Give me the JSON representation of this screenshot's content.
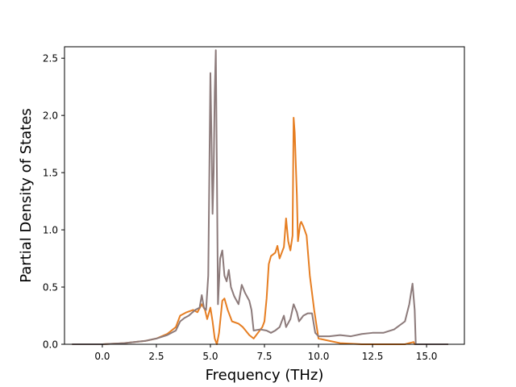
{
  "chart_data": {
    "type": "line",
    "title": "",
    "xlabel": "Frequency (THz)",
    "ylabel": "Partial Density of States",
    "xlim": [
      -1.75,
      16.75
    ],
    "ylim": [
      0,
      2.6
    ],
    "x_ticks": [
      0.0,
      2.5,
      5.0,
      7.5,
      10.0,
      12.5,
      15.0
    ],
    "x_tick_labels": [
      "0.0",
      "2.5",
      "5.0",
      "7.5",
      "10.0",
      "12.5",
      "15.0"
    ],
    "y_ticks": [
      0.0,
      0.5,
      1.0,
      1.5,
      2.0,
      2.5
    ],
    "y_tick_labels": [
      "0.0",
      "0.5",
      "1.0",
      "1.5",
      "2.0",
      "2.5"
    ],
    "grid": false,
    "legend": "none",
    "series": [
      {
        "color": "#e67e22",
        "points": [
          [
            -1.4,
            0.0
          ],
          [
            0.0,
            0.0
          ],
          [
            1.0,
            0.01
          ],
          [
            2.0,
            0.03
          ],
          [
            2.5,
            0.05
          ],
          [
            3.0,
            0.09
          ],
          [
            3.4,
            0.15
          ],
          [
            3.6,
            0.25
          ],
          [
            3.9,
            0.28
          ],
          [
            4.2,
            0.3
          ],
          [
            4.4,
            0.28
          ],
          [
            4.6,
            0.35
          ],
          [
            4.75,
            0.3
          ],
          [
            4.85,
            0.22
          ],
          [
            5.0,
            0.32
          ],
          [
            5.1,
            0.2
          ],
          [
            5.2,
            0.05
          ],
          [
            5.3,
            0.0
          ],
          [
            5.4,
            0.1
          ],
          [
            5.55,
            0.38
          ],
          [
            5.65,
            0.4
          ],
          [
            5.8,
            0.3
          ],
          [
            6.0,
            0.2
          ],
          [
            6.3,
            0.18
          ],
          [
            6.5,
            0.15
          ],
          [
            6.8,
            0.08
          ],
          [
            7.0,
            0.05
          ],
          [
            7.2,
            0.1
          ],
          [
            7.4,
            0.15
          ],
          [
            7.5,
            0.2
          ],
          [
            7.6,
            0.4
          ],
          [
            7.7,
            0.7
          ],
          [
            7.8,
            0.77
          ],
          [
            8.0,
            0.8
          ],
          [
            8.1,
            0.86
          ],
          [
            8.2,
            0.75
          ],
          [
            8.4,
            0.85
          ],
          [
            8.5,
            1.1
          ],
          [
            8.6,
            0.9
          ],
          [
            8.7,
            0.82
          ],
          [
            8.8,
            0.95
          ],
          [
            8.85,
            1.98
          ],
          [
            8.9,
            1.85
          ],
          [
            9.0,
            1.3
          ],
          [
            9.05,
            0.9
          ],
          [
            9.15,
            1.05
          ],
          [
            9.2,
            1.07
          ],
          [
            9.3,
            1.03
          ],
          [
            9.45,
            0.95
          ],
          [
            9.6,
            0.6
          ],
          [
            9.8,
            0.3
          ],
          [
            10.0,
            0.05
          ],
          [
            10.5,
            0.03
          ],
          [
            11.0,
            0.01
          ],
          [
            12.0,
            0.0
          ],
          [
            13.0,
            0.0
          ],
          [
            14.0,
            0.0
          ],
          [
            14.4,
            0.02
          ],
          [
            14.45,
            0.0
          ],
          [
            16.0,
            0.0
          ]
        ]
      },
      {
        "color": "#8c7a7a",
        "points": [
          [
            -1.4,
            0.0
          ],
          [
            0.0,
            0.0
          ],
          [
            1.0,
            0.01
          ],
          [
            2.0,
            0.03
          ],
          [
            2.5,
            0.05
          ],
          [
            3.0,
            0.08
          ],
          [
            3.4,
            0.12
          ],
          [
            3.6,
            0.2
          ],
          [
            3.8,
            0.23
          ],
          [
            4.0,
            0.25
          ],
          [
            4.3,
            0.3
          ],
          [
            4.5,
            0.32
          ],
          [
            4.6,
            0.43
          ],
          [
            4.7,
            0.32
          ],
          [
            4.8,
            0.3
          ],
          [
            4.9,
            0.6
          ],
          [
            5.0,
            2.37
          ],
          [
            5.05,
            1.8
          ],
          [
            5.1,
            1.14
          ],
          [
            5.15,
            1.5
          ],
          [
            5.2,
            2.2
          ],
          [
            5.25,
            2.57
          ],
          [
            5.3,
            1.5
          ],
          [
            5.35,
            0.35
          ],
          [
            5.45,
            0.75
          ],
          [
            5.55,
            0.82
          ],
          [
            5.65,
            0.6
          ],
          [
            5.75,
            0.55
          ],
          [
            5.85,
            0.65
          ],
          [
            5.95,
            0.5
          ],
          [
            6.1,
            0.42
          ],
          [
            6.3,
            0.35
          ],
          [
            6.45,
            0.52
          ],
          [
            6.6,
            0.45
          ],
          [
            6.8,
            0.38
          ],
          [
            6.9,
            0.3
          ],
          [
            7.0,
            0.12
          ],
          [
            7.3,
            0.13
          ],
          [
            7.6,
            0.12
          ],
          [
            7.8,
            0.1
          ],
          [
            8.0,
            0.12
          ],
          [
            8.2,
            0.15
          ],
          [
            8.3,
            0.2
          ],
          [
            8.4,
            0.25
          ],
          [
            8.5,
            0.15
          ],
          [
            8.7,
            0.22
          ],
          [
            8.85,
            0.35
          ],
          [
            9.0,
            0.28
          ],
          [
            9.1,
            0.2
          ],
          [
            9.3,
            0.25
          ],
          [
            9.5,
            0.27
          ],
          [
            9.7,
            0.27
          ],
          [
            9.85,
            0.1
          ],
          [
            10.0,
            0.07
          ],
          [
            10.5,
            0.07
          ],
          [
            11.0,
            0.08
          ],
          [
            11.5,
            0.07
          ],
          [
            12.0,
            0.09
          ],
          [
            12.5,
            0.1
          ],
          [
            13.0,
            0.1
          ],
          [
            13.5,
            0.13
          ],
          [
            14.0,
            0.2
          ],
          [
            14.2,
            0.35
          ],
          [
            14.35,
            0.53
          ],
          [
            14.45,
            0.3
          ],
          [
            14.5,
            0.0
          ],
          [
            16.0,
            0.0
          ]
        ]
      }
    ]
  }
}
